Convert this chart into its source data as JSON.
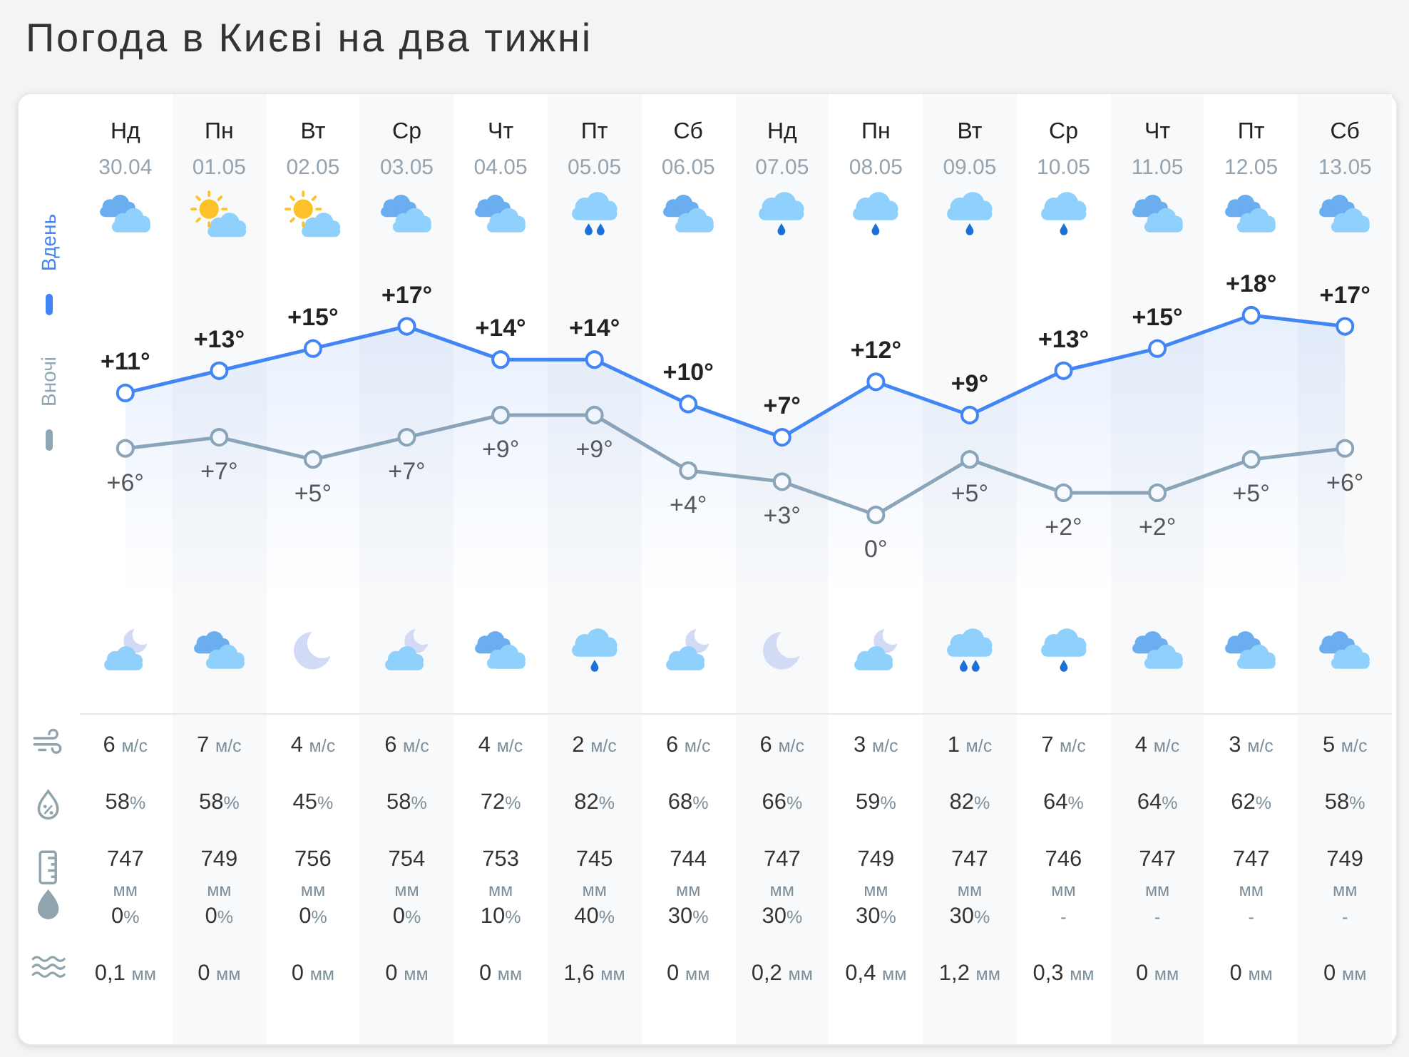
{
  "chart_data": [
    {
      "type": "line",
      "title": "Погода в Києві на два тижні",
      "categories": [
        "Нд\n30.04",
        "Пн\n01.05",
        "Вт\n02.05",
        "Ср\n03.05",
        "Чт\n04.05",
        "Пт\n05.05",
        "Сб\n06.05",
        "Нд\n07.05",
        "Пн\n08.05",
        "Вт\n09.05",
        "Ср\n10.05",
        "Чт\n11.05",
        "Пт\n12.05",
        "Сб\n13.05"
      ],
      "series": [
        {
          "name": "Вдень",
          "type": "area",
          "color": "#4285f4",
          "values": [
            11,
            13,
            15,
            17,
            14,
            14,
            10,
            7,
            12,
            9,
            13,
            15,
            18,
            17
          ],
          "value_labels": [
            "+11°",
            "+13°",
            "+15°",
            "+17°",
            "+14°",
            "+14°",
            "+10°",
            "+7°",
            "+12°",
            "+9°",
            "+13°",
            "+15°",
            "+18°",
            "+17°"
          ]
        },
        {
          "name": "Вночі",
          "color": "#8fa6b5",
          "values": [
            6,
            7,
            5,
            7,
            9,
            9,
            4,
            3,
            0,
            5,
            2,
            2,
            5,
            6
          ],
          "value_labels": [
            "+6°",
            "+7°",
            "+5°",
            "+7°",
            "+9°",
            "+9°",
            "+4°",
            "+3°",
            "0°",
            "+5°",
            "+2°",
            "+2°",
            "+5°",
            "+6°"
          ]
        }
      ],
      "marker": "circle",
      "legend": "left"
    },
    {
      "type": "other",
      "annotations": [
        "6 м/с",
        "7 м/с",
        "4 м/с",
        "6 м/с",
        "4 м/с",
        "2 м/с",
        "6 м/с",
        "6 м/с",
        "3 м/с",
        "1 м/с",
        "7 м/с",
        "4 м/с",
        "3 м/с",
        "5 м/с",
        "58%",
        "58%",
        "45%",
        "58%",
        "72%",
        "82%",
        "68%",
        "66%",
        "59%",
        "82%",
        "64%",
        "64%",
        "62%",
        "58%",
        "747 мм",
        "749 мм",
        "756 мм",
        "754 мм",
        "753 мм",
        "745 мм",
        "744 мм",
        "747 мм",
        "749 мм",
        "747 мм",
        "746 мм",
        "747 мм",
        "747 мм",
        "749 мм",
        "0%",
        "0%",
        "0%",
        "0%",
        "10%",
        "40%",
        "30%",
        "30%",
        "30%",
        "30%",
        "-",
        "-",
        "-",
        "-",
        "0,1 мм",
        "0 мм",
        "0 мм",
        "0 мм",
        "0 мм",
        "1,6 мм",
        "0 мм",
        "0,2 мм",
        "0,4 мм",
        "1,2 мм",
        "0,3 мм",
        "0 мм",
        "0 мм",
        "0 мм"
      ]
    }
  ]
}
